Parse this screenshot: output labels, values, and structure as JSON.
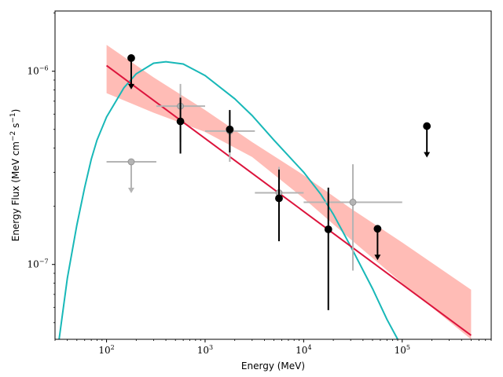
{
  "chart_data": {
    "type": "scatter",
    "xlabel": "Energy (MeV)",
    "ylabel": "Energy Flux (MeV cm",
    "ylabel_sup1": "−2",
    "ylabel_mid": " s",
    "ylabel_sup2": "−1",
    "ylabel_end": ")",
    "xscale": "log",
    "yscale": "log",
    "xlim": [
      30,
      800000
    ],
    "ylim": [
      4.1e-08,
      2.05e-06
    ],
    "grid": false,
    "x_tick_labels": [
      {
        "base": "10",
        "exp": "2",
        "value": 100
      },
      {
        "base": "10",
        "exp": "3",
        "value": 1000
      },
      {
        "base": "10",
        "exp": "4",
        "value": 10000
      },
      {
        "base": "10",
        "exp": "5",
        "value": 100000
      }
    ],
    "y_tick_labels": [
      {
        "base": "10",
        "exp": "−6",
        "value": 1e-06
      },
      {
        "base": "10",
        "exp": "−7",
        "value": 1e-07
      }
    ],
    "colors": {
      "fit_line": "#dc143c",
      "fit_band": "#ffbcb6",
      "model_curve": "#18b8b8",
      "black_points": "#000000",
      "gray_points": "#b4b4b4"
    },
    "fit_line": [
      [
        100,
        1.07e-06
      ],
      [
        500000,
        4.3e-08
      ]
    ],
    "fit_band": {
      "upper": [
        [
          100,
          1.37e-06
        ],
        [
          300,
          9.3e-07
        ],
        [
          1000,
          6.3e-07
        ],
        [
          3000,
          4.3e-07
        ],
        [
          10000,
          2.9e-07
        ],
        [
          30000,
          1.95e-07
        ],
        [
          100000,
          1.3e-07
        ],
        [
          500000,
          7.4e-08
        ]
      ],
      "lower": [
        [
          100,
          7.7e-07
        ],
        [
          300,
          6.1e-07
        ],
        [
          1000,
          4.85e-07
        ],
        [
          3000,
          3.6e-07
        ],
        [
          10000,
          2.2e-07
        ],
        [
          30000,
          1.35e-07
        ],
        [
          100000,
          8e-08
        ],
        [
          500000,
          4.1e-08
        ]
      ]
    },
    "model_curve": [
      [
        33,
        4.1e-08
      ],
      [
        40,
        8.5e-08
      ],
      [
        50,
        1.6e-07
      ],
      [
        60,
        2.5e-07
      ],
      [
        70,
        3.5e-07
      ],
      [
        80,
        4.4e-07
      ],
      [
        100,
        5.8e-07
      ],
      [
        150,
        8.2e-07
      ],
      [
        200,
        9.7e-07
      ],
      [
        300,
        1.1e-06
      ],
      [
        400,
        1.12e-06
      ],
      [
        600,
        1.09e-06
      ],
      [
        1000,
        9.5e-07
      ],
      [
        2000,
        7.2e-07
      ],
      [
        3000,
        5.9e-07
      ],
      [
        5000,
        4.4e-07
      ],
      [
        10000,
        3e-07
      ],
      [
        15000,
        2.3e-07
      ],
      [
        20000,
        1.82e-07
      ],
      [
        30000,
        1.24e-07
      ],
      [
        50000,
        7.5e-08
      ],
      [
        70000,
        5.2e-08
      ],
      [
        90000,
        4.1e-08
      ]
    ],
    "series": [
      {
        "color": "black",
        "points": [
          {
            "x": 178,
            "y": 1.17e-06,
            "upper_limit": true
          },
          {
            "x": 562,
            "y": 5.5e-07,
            "yerr": [
              3.75e-07,
              7.3e-07
            ]
          },
          {
            "x": 1780,
            "y": 5e-07,
            "yerr": [
              3.8e-07,
              6.3e-07
            ]
          },
          {
            "x": 5620,
            "y": 2.2e-07,
            "yerr": [
              1.32e-07,
              3.1e-07
            ]
          },
          {
            "x": 17800,
            "y": 1.52e-07,
            "yerr": [
              5.8e-08,
              2.5e-07
            ]
          },
          {
            "x": 56200,
            "y": 1.53e-07,
            "upper_limit": true
          },
          {
            "x": 178000,
            "y": 5.2e-07,
            "upper_limit": true
          }
        ]
      },
      {
        "color": "gray",
        "points": [
          {
            "x": 178,
            "y": 3.4e-07,
            "xerr": [
              100,
              320
            ],
            "upper_limit": true
          },
          {
            "x": 562,
            "y": 6.6e-07,
            "xerr": [
              320,
              1000
            ],
            "yerr": [
              4.3e-07,
              8.6e-07
            ]
          },
          {
            "x": 1780,
            "y": 4.9e-07,
            "xerr": [
              1000,
              3200
            ],
            "yerr": [
              3.4e-07,
              6.2e-07
            ]
          },
          {
            "x": 5620,
            "y": 2.35e-07,
            "xerr": [
              3200,
              10000
            ],
            "yerr": [
              1.6e-07,
              3.2e-07
            ]
          },
          {
            "x": 31600,
            "y": 2.1e-07,
            "xerr": [
              10000,
              100000
            ],
            "yerr": [
              9.3e-08,
              3.3e-07
            ]
          }
        ]
      }
    ]
  }
}
